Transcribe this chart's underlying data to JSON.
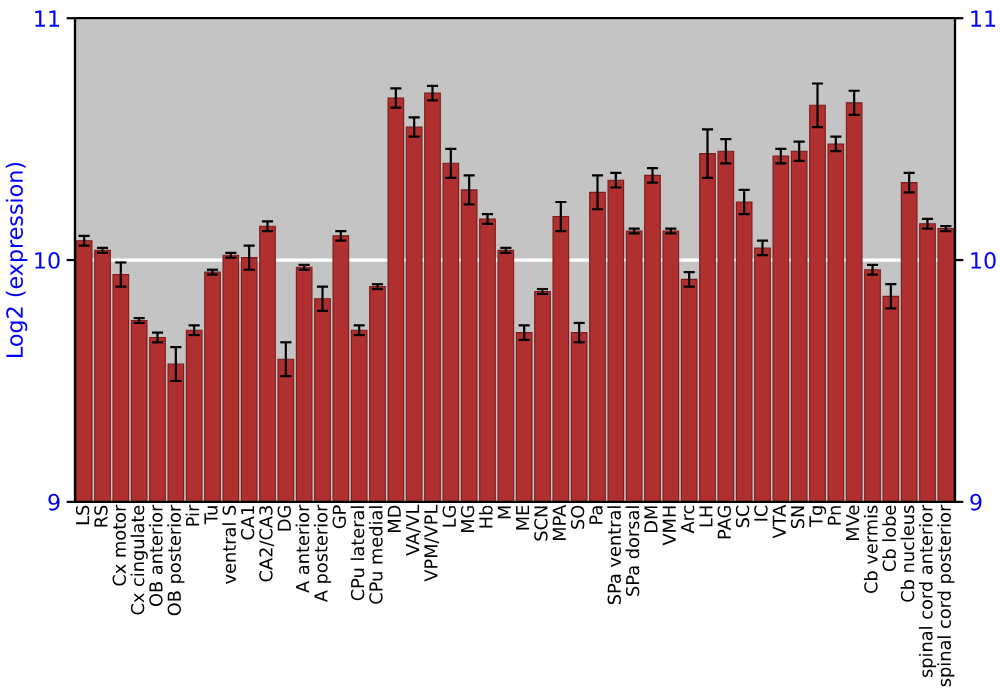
{
  "chart_data": {
    "type": "bar",
    "ylabel": "Log2 (expression)",
    "categories": [
      "LS",
      "RS",
      "Cx motor",
      "Cx cingulate",
      "OB anterior",
      "OB posterior",
      "Pir",
      "Tu",
      "ventral S",
      "CA1",
      "CA2/CA3",
      "DG",
      "A anterior",
      "A posterior",
      "GP",
      "CPu lateral",
      "CPu medial",
      "MD",
      "VA/VL",
      "VPM/VPL",
      "LG",
      "MG",
      "Hb",
      "M",
      "ME",
      "SCN",
      "MPA",
      "SO",
      "Pa",
      "SPa ventral",
      "SPa dorsal",
      "DM",
      "VMH",
      "Arc",
      "LH",
      "PAG",
      "SC",
      "IC",
      "VTA",
      "SN",
      "Tg",
      "Pn",
      "MVe",
      "Cb vermis",
      "Cb lobe",
      "Cb nucleus",
      "spinal cord anterior",
      "spinal cord posterior"
    ],
    "values": [
      10.08,
      10.04,
      9.94,
      9.75,
      9.68,
      9.57,
      9.71,
      9.95,
      10.02,
      10.01,
      10.14,
      9.59,
      9.97,
      9.84,
      10.1,
      9.71,
      9.89,
      10.67,
      10.55,
      10.69,
      10.4,
      10.29,
      10.17,
      10.04,
      9.7,
      9.87,
      10.18,
      9.7,
      10.28,
      10.33,
      10.12,
      10.35,
      10.12,
      9.92,
      10.44,
      10.45,
      10.24,
      10.05,
      10.43,
      10.45,
      10.64,
      10.48,
      10.65,
      9.96,
      9.85,
      10.32,
      10.15,
      10.13
    ],
    "errors": [
      0.02,
      0.01,
      0.05,
      0.01,
      0.02,
      0.07,
      0.02,
      0.01,
      0.01,
      0.05,
      0.02,
      0.07,
      0.01,
      0.05,
      0.02,
      0.02,
      0.01,
      0.04,
      0.04,
      0.03,
      0.06,
      0.06,
      0.02,
      0.01,
      0.03,
      0.01,
      0.06,
      0.04,
      0.07,
      0.03,
      0.01,
      0.03,
      0.01,
      0.03,
      0.1,
      0.05,
      0.05,
      0.03,
      0.03,
      0.04,
      0.09,
      0.03,
      0.05,
      0.02,
      0.05,
      0.04,
      0.02,
      0.01
    ],
    "color": "#b03030",
    "ylim": [
      9,
      11
    ],
    "yticks": [
      9,
      10,
      11
    ],
    "y2lim": [
      9,
      11
    ],
    "y2ticks": [
      9,
      10,
      11
    ],
    "grid": "y"
  }
}
